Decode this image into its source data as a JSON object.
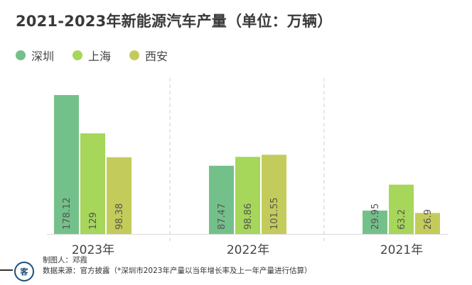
{
  "title": "2021-2023年新能源汽车产量（单位：万辆）",
  "legend": [
    {
      "name": "深圳",
      "color": "#74c08a"
    },
    {
      "name": "上海",
      "color": "#a6d65a"
    },
    {
      "name": "西安",
      "color": "#c3cc5a"
    }
  ],
  "chart_data": {
    "type": "bar",
    "categories": [
      "2023年",
      "2022年",
      "2021年"
    ],
    "series": [
      {
        "name": "深圳",
        "values": [
          178.12,
          87.47,
          29.95
        ],
        "labels": [
          "178.12",
          "87.47",
          "29.95"
        ]
      },
      {
        "name": "上海",
        "values": [
          129,
          98.86,
          63.2
        ],
        "labels": [
          "129",
          "98.86",
          "63.2"
        ]
      },
      {
        "name": "西安",
        "values": [
          98.38,
          101.55,
          26.9
        ],
        "labels": [
          "98.38",
          "101.55",
          "26.9"
        ]
      }
    ],
    "ylim": [
      0,
      200
    ],
    "legend_position": "top-left",
    "grid": false
  },
  "footer": {
    "author": "制图人：邓霞",
    "source": "数据来源：官方披露（*深圳市2023年产量以当年增长率及上一年产量进行估算）"
  },
  "logo": {
    "text": "客",
    "color": "#1d4f7a"
  }
}
